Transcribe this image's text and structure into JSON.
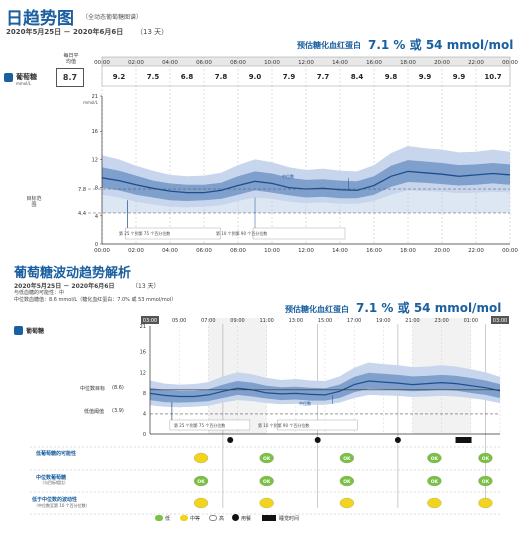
{
  "section1": {
    "title": "日趋势图",
    "subtitle": "（全动态葡萄糖图谱）",
    "date_range": "2020年5月25日 － 2020年6月6日",
    "days": "（13 天）",
    "hba1c_label": "预估糖化血红蛋白",
    "hba1c_value": "7.1 % 或 54 mmol/mol",
    "daily_avg_header": "每日平均值",
    "row_label": "葡萄糖",
    "row_unit": "mmol/L",
    "daily_avg_value": "8.7",
    "unit_axis": "mmol/L",
    "target_label": "目标范围",
    "median_label": "中位数",
    "legend_25_75": "第 25 个到第 75 个百分位数",
    "legend_10_90": "第 10 个到第 90 个百分位数"
  },
  "section2": {
    "title": "葡萄糖波动趋势解析",
    "date_range": "2020年5月25日 － 2020年6月6日",
    "days": "（13 天）",
    "line1": "与低血糖的可能性：中",
    "line2": "中位数血糖值：8.6 mmol/L（糖化血红蛋白：7.0% 或 53 mmol/mol）",
    "hba1c_label": "预估糖化血红蛋白",
    "hba1c_value": "7.1 % 或 54 mmol/mol",
    "row_label": "葡萄糖",
    "median_goal_label": "中位数目标",
    "median_goal_value": "(8.6)",
    "low_threshold_label": "低值阈值",
    "low_threshold_value": "(3.9)",
    "median_label": "中位数",
    "legend_25_75": "第 25 个到第 75 个百分位数",
    "legend_10_90": "第 10 个到第 90 个百分位数",
    "rows": [
      {
        "label": "低葡萄糖的可能性",
        "sub": "",
        "marks": [
          "yellow",
          "green",
          "green",
          "green",
          "green"
        ]
      },
      {
        "label": "中位数葡萄糖",
        "sub": "（与目标相比）",
        "marks": [
          "green",
          "green",
          "green",
          "green",
          "green"
        ]
      },
      {
        "label": "低于中位数的波动性",
        "sub": "（中位数至第 10 个百分位数）",
        "marks": [
          "yellow",
          "yellow",
          "yellow",
          "yellow",
          "yellow"
        ]
      }
    ],
    "legend": {
      "low": "低",
      "moderate": "中等",
      "high": "高",
      "meal": "用餐",
      "sleep": "睡觉时间"
    }
  },
  "chart_data": [
    {
      "type": "line",
      "title": "日趋势图",
      "x_ticks": [
        "00:00",
        "02:00",
        "04:00",
        "06:00",
        "08:00",
        "10:00",
        "12:00",
        "14:00",
        "16:00",
        "18:00",
        "20:00",
        "22:00",
        "00:00"
      ],
      "hourly_averages": [
        9.2,
        7.5,
        6.8,
        7.8,
        9.0,
        7.9,
        7.7,
        8.4,
        9.8,
        9.9,
        9.9,
        10.7
      ],
      "y_ticks": [
        0,
        4,
        8,
        12,
        16,
        21
      ],
      "ylim": [
        0,
        21
      ],
      "ylabel": "mmol/L",
      "target_range": [
        4.4,
        7.8
      ],
      "x_hours": [
        0,
        1,
        2,
        3,
        4,
        5,
        6,
        7,
        8,
        9,
        10,
        11,
        12,
        13,
        14,
        15,
        16,
        17,
        18,
        19,
        20,
        21,
        22,
        23,
        24
      ],
      "series": [
        {
          "name": "中位数",
          "values": [
            9.4,
            9.0,
            8.4,
            7.9,
            7.5,
            7.3,
            7.3,
            7.6,
            8.3,
            8.9,
            8.6,
            8.0,
            7.8,
            7.9,
            7.7,
            7.6,
            8.3,
            9.6,
            10.3,
            10.1,
            9.9,
            9.6,
            9.8,
            10.0,
            9.8
          ]
        },
        {
          "name": "第 25 个到第 75 个百分位数 (低)",
          "values": [
            8.0,
            7.6,
            7.0,
            6.6,
            6.2,
            6.1,
            6.2,
            6.4,
            7.0,
            7.6,
            7.3,
            6.9,
            6.6,
            6.7,
            6.5,
            6.5,
            7.0,
            8.1,
            8.8,
            8.7,
            8.5,
            8.3,
            8.4,
            8.6,
            8.4
          ]
        },
        {
          "name": "第 25 个到第 75 个百分位数 (高)",
          "values": [
            10.9,
            10.4,
            9.7,
            9.0,
            8.6,
            8.4,
            8.4,
            8.7,
            9.6,
            10.3,
            10.0,
            9.4,
            9.1,
            9.2,
            9.0,
            8.9,
            9.6,
            11.1,
            11.9,
            11.7,
            11.5,
            11.2,
            11.3,
            11.5,
            11.3
          ]
        },
        {
          "name": "第 10 个到第 90 个百分位数 (低)",
          "values": [
            7.0,
            6.6,
            6.0,
            5.6,
            5.3,
            5.2,
            5.3,
            5.5,
            6.1,
            6.6,
            6.4,
            6.0,
            5.8,
            5.9,
            5.7,
            5.7,
            6.1,
            7.0,
            7.6,
            7.5,
            7.4,
            7.2,
            7.3,
            7.4,
            7.3
          ]
        },
        {
          "name": "第 10 个到第 90 个百分位数 (高)",
          "values": [
            12.6,
            12.0,
            11.1,
            10.4,
            9.8,
            9.6,
            9.7,
            10.1,
            11.2,
            12.0,
            11.6,
            10.9,
            10.5,
            10.7,
            10.4,
            10.3,
            11.2,
            12.9,
            13.9,
            13.6,
            13.4,
            13.0,
            13.1,
            13.4,
            13.1
          ]
        }
      ]
    },
    {
      "type": "line",
      "title": "葡萄糖波动趋势解析",
      "x_ticks": [
        "03:00",
        "05:00",
        "07:00",
        "09:00",
        "11:00",
        "13:00",
        "15:00",
        "17:00",
        "19:00",
        "21:00",
        "23:00",
        "01:00",
        "03:00"
      ],
      "y_ticks": [
        0,
        4,
        8,
        12,
        16,
        21
      ],
      "ylim": [
        0,
        21
      ],
      "median_goal": 8.6,
      "low_threshold": 3.9,
      "x_hours": [
        3,
        4,
        5,
        6,
        7,
        8,
        9,
        10,
        11,
        12,
        13,
        14,
        15,
        16,
        17,
        18,
        19,
        20,
        21,
        22,
        23,
        24,
        25,
        26,
        27
      ],
      "series": [
        {
          "name": "中位数",
          "values": [
            7.9,
            7.5,
            7.3,
            7.3,
            7.6,
            8.3,
            8.9,
            8.6,
            8.0,
            7.8,
            7.9,
            7.7,
            7.6,
            8.3,
            9.6,
            10.3,
            10.1,
            9.9,
            9.6,
            9.8,
            10.0,
            9.8,
            9.4,
            9.0,
            8.4
          ]
        },
        {
          "name": "第 25 个到第 75 个百分位数 (低)",
          "values": [
            6.6,
            6.2,
            6.1,
            6.2,
            6.4,
            7.0,
            7.6,
            7.3,
            6.9,
            6.6,
            6.7,
            6.5,
            6.5,
            7.0,
            8.1,
            8.8,
            8.7,
            8.5,
            8.3,
            8.4,
            8.6,
            8.4,
            8.0,
            7.6,
            7.0
          ]
        },
        {
          "name": "第 25 个到第 75 个百分位数 (高)",
          "values": [
            9.0,
            8.6,
            8.4,
            8.4,
            8.7,
            9.6,
            10.3,
            10.0,
            9.4,
            9.1,
            9.2,
            9.0,
            8.9,
            9.6,
            11.1,
            11.9,
            11.7,
            11.5,
            11.2,
            11.3,
            11.5,
            11.3,
            10.9,
            10.4,
            9.7
          ]
        },
        {
          "name": "第 10 个到第 90 个百分位数 (低)",
          "values": [
            5.6,
            5.3,
            5.2,
            5.3,
            5.5,
            6.1,
            6.6,
            6.4,
            6.0,
            5.8,
            5.9,
            5.7,
            5.7,
            6.1,
            7.0,
            7.6,
            7.5,
            7.4,
            7.2,
            7.3,
            7.4,
            7.3,
            7.0,
            6.6,
            6.0
          ]
        },
        {
          "name": "第 10 个到第 90 个百分位数 (高)",
          "values": [
            10.4,
            9.8,
            9.6,
            9.7,
            10.1,
            11.2,
            12.0,
            11.6,
            10.9,
            10.5,
            10.7,
            10.4,
            10.3,
            11.2,
            12.9,
            13.9,
            13.6,
            13.4,
            13.0,
            13.1,
            13.4,
            13.1,
            12.6,
            12.0,
            11.1
          ]
        }
      ]
    }
  ],
  "colors": {
    "title_blue": "#1a5fa0",
    "band_outer": "#c7d6ec",
    "band_inner": "#7f9fcd",
    "median_line": "#1d4f8f",
    "target_band": "#dde7f3",
    "status_green": "#7ac143",
    "status_yellow": "#f1d51c"
  }
}
